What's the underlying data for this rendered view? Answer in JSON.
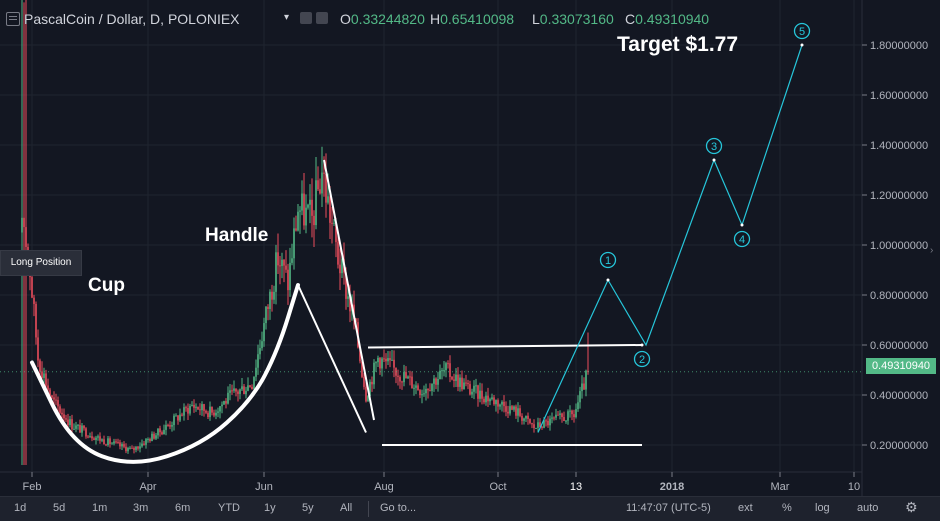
{
  "header": {
    "symbol_label": "PascalCoin / Dollar, D, POLONIEX",
    "open_key": "O",
    "open": "0.33244820",
    "high_key": "H",
    "high": "0.65410098",
    "low_key": "L",
    "low": "0.33073160",
    "close_key": "C",
    "close": "0.49310940"
  },
  "annotations": {
    "cup": "Cup",
    "handle": "Handle",
    "target": "Target $1.77",
    "long_position": "Long Position"
  },
  "wave_labels": [
    "1",
    "2",
    "3",
    "4",
    "5"
  ],
  "price_tag": "0.49310940",
  "bottom": {
    "timeframes": [
      "1d",
      "5d",
      "1m",
      "3m",
      "6m",
      "YTD",
      "1y",
      "5y",
      "All"
    ],
    "goto": "Go to...",
    "clock": "11:47:07 (UTC-5)",
    "right_buttons": [
      "ext",
      "%",
      "log",
      "auto"
    ]
  },
  "colors": {
    "background": "#131722",
    "up": "#53b987",
    "down": "#eb4d5c",
    "wave": "#26c6da",
    "price_line": "#53b987"
  },
  "chart_data": {
    "type": "candlestick",
    "title": "PascalCoin / Dollar, D, POLONIEX",
    "y_ticks": [
      0.2,
      0.4,
      0.6,
      0.8,
      1.0,
      1.2,
      1.4,
      1.6,
      1.8
    ],
    "y_tick_labels": [
      "0.20000000",
      "0.40000000",
      "0.60000000",
      "0.80000000",
      "1.00000000",
      "1.20000000",
      "1.40000000",
      "1.60000000",
      "1.80000000"
    ],
    "ylim": [
      0.05,
      1.95
    ],
    "x_tick_labels": [
      "Feb",
      "Apr",
      "Jun",
      "Aug",
      "Oct",
      "13",
      "2018",
      "Mar",
      "10"
    ],
    "price_path_keypoints": [
      {
        "t": 0,
        "p": 1.05
      },
      {
        "t": 4,
        "p": 0.9
      },
      {
        "t": 8,
        "p": 0.55
      },
      {
        "t": 15,
        "p": 0.38
      },
      {
        "t": 25,
        "p": 0.28
      },
      {
        "t": 40,
        "p": 0.22
      },
      {
        "t": 55,
        "p": 0.18
      },
      {
        "t": 70,
        "p": 0.26
      },
      {
        "t": 85,
        "p": 0.36
      },
      {
        "t": 95,
        "p": 0.33
      },
      {
        "t": 105,
        "p": 0.4
      },
      {
        "t": 115,
        "p": 0.45
      },
      {
        "t": 122,
        "p": 0.72
      },
      {
        "t": 128,
        "p": 0.95
      },
      {
        "t": 133,
        "p": 0.85
      },
      {
        "t": 138,
        "p": 1.15
      },
      {
        "t": 145,
        "p": 1.1
      },
      {
        "t": 150,
        "p": 1.3
      },
      {
        "t": 158,
        "p": 0.95
      },
      {
        "t": 166,
        "p": 0.7
      },
      {
        "t": 172,
        "p": 0.4
      },
      {
        "t": 178,
        "p": 0.55
      },
      {
        "t": 190,
        "p": 0.48
      },
      {
        "t": 200,
        "p": 0.42
      },
      {
        "t": 212,
        "p": 0.5
      },
      {
        "t": 224,
        "p": 0.42
      },
      {
        "t": 236,
        "p": 0.38
      },
      {
        "t": 248,
        "p": 0.33
      },
      {
        "t": 256,
        "p": 0.27
      },
      {
        "t": 266,
        "p": 0.3
      },
      {
        "t": 276,
        "p": 0.32
      },
      {
        "t": 283,
        "p": 0.49
      }
    ],
    "overlay": {
      "cup_curve": [
        [
          5,
          0.53
        ],
        [
          25,
          0.2
        ],
        [
          55,
          0.11
        ],
        [
          90,
          0.2
        ],
        [
          115,
          0.38
        ],
        [
          128,
          0.58
        ],
        [
          138,
          0.84
        ]
      ],
      "handle_line": [
        [
          138,
          0.84
        ],
        [
          172,
          0.25
        ]
      ],
      "channel_upper": [
        [
          151,
          1.34
        ],
        [
          176,
          0.3
        ]
      ],
      "resistance": [
        [
          173,
          0.59
        ],
        [
          310,
          0.6
        ]
      ],
      "support": [
        [
          180,
          0.2
        ],
        [
          310,
          0.2
        ]
      ],
      "wave_path": [
        [
          258,
          0.25
        ],
        [
          293,
          0.86
        ],
        [
          312,
          0.6
        ],
        [
          346,
          1.34
        ],
        [
          360,
          1.08
        ],
        [
          390,
          1.8
        ]
      ],
      "wave_points": [
        {
          "label": "1",
          "t": 293,
          "p": 0.86
        },
        {
          "label": "2",
          "t": 310,
          "p": 0.6
        },
        {
          "label": "3",
          "t": 346,
          "p": 1.34
        },
        {
          "label": "4",
          "t": 360,
          "p": 1.08
        },
        {
          "label": "5",
          "t": 390,
          "p": 1.8
        }
      ],
      "target_price": 1.77,
      "last_price": 0.4931094
    }
  }
}
